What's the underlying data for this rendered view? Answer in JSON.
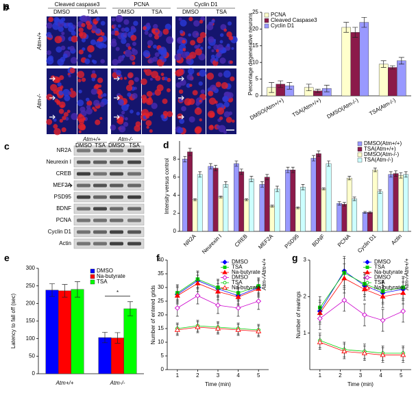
{
  "figure_a": {
    "letter": "a",
    "stains": [
      "Cleaved caspase3",
      "PCNA",
      "Cyclin D1"
    ],
    "treatments": [
      "DMSO",
      "TSA"
    ],
    "genotypes": [
      "Atm+/+",
      "Atm-/-"
    ]
  },
  "figure_c": {
    "letter": "c",
    "genotypes": [
      "Atm+/+",
      "Atm-/-"
    ],
    "treatments": [
      "DMSO",
      "TSA"
    ],
    "proteins": [
      "NR2A",
      "Neurexin I",
      "CREB",
      "MEF2A",
      "PSD95",
      "BDNF",
      "PCNA",
      "Cyclin D1",
      "Actin"
    ]
  },
  "chart_data": [
    {
      "type": "bar",
      "letter": "b",
      "ylabel": "Percentage degenerative neurons",
      "categories": [
        "DMSO(Atm+/+)",
        "TSA(Atm+/+)",
        "DMSO(Atm-/-)",
        "TSA(Atm-/-)"
      ],
      "series": [
        {
          "name": "PCNA",
          "color": "#ffffcc",
          "values": [
            2.5,
            2.5,
            20.5,
            9.5
          ],
          "errors": [
            1.5,
            1,
            1.5,
            1
          ]
        },
        {
          "name": "Cleaved Caspase3",
          "color": "#8b1a4a",
          "values": [
            3.5,
            1.5,
            19,
            8.5
          ],
          "errors": [
            1,
            0.5,
            1.5,
            0.5
          ]
        },
        {
          "name": "Cyclin D1",
          "color": "#9999ff",
          "values": [
            3,
            2.2,
            22,
            10.5
          ],
          "errors": [
            1,
            1,
            1.5,
            1
          ]
        }
      ],
      "ylim": [
        0,
        25
      ],
      "yticks": [
        0,
        5,
        10,
        15,
        20,
        25
      ],
      "legend": "upper left"
    },
    {
      "type": "bar",
      "letter": "d",
      "ylabel": "Intensity versus control",
      "categories": [
        "NR2A",
        "Neurexin I",
        "CREB",
        "MEF2A",
        "PSD95",
        "BDNF",
        "PCNA",
        "Cyclin D1",
        "Actin"
      ],
      "series": [
        {
          "name": "DMSO(Atm+/+)",
          "color": "#9999ff",
          "values": [
            8.0,
            7.2,
            7.5,
            5.2,
            6.8,
            8.1,
            3.1,
            2.1,
            6.3
          ],
          "errors": [
            0.3,
            0.3,
            0.3,
            0.3,
            0.3,
            0.3,
            0.2,
            0.1,
            0.3
          ]
        },
        {
          "name": "TSA(Atm+/+)",
          "color": "#8b1a4a",
          "values": [
            8.8,
            7.0,
            6.6,
            6.0,
            6.8,
            8.6,
            3.0,
            2.1,
            6.4
          ],
          "errors": [
            0.4,
            0.3,
            0.3,
            0.3,
            0.3,
            0.3,
            0.2,
            0.1,
            0.3
          ]
        },
        {
          "name": "DMSO(Atm-/-)",
          "color": "#ffffcc",
          "values": [
            3.5,
            3.8,
            3.5,
            2.8,
            2.6,
            4.7,
            5.9,
            6.8,
            6.2
          ],
          "errors": [
            0.1,
            0.1,
            0.1,
            0.1,
            0.1,
            0.1,
            0.2,
            0.2,
            0.3
          ]
        },
        {
          "name": "TSA(Atm-/-)",
          "color": "#ccffff",
          "values": [
            6.3,
            5.2,
            5.8,
            4.7,
            4.9,
            7.5,
            3.6,
            4.4,
            6.3
          ],
          "errors": [
            0.3,
            0.3,
            0.3,
            0.3,
            0.3,
            0.3,
            0.2,
            0.2,
            0.3
          ]
        }
      ],
      "ylim": [
        0,
        10
      ],
      "yticks": [
        0,
        2,
        4,
        6,
        8
      ],
      "legend": "upper right"
    },
    {
      "type": "bar",
      "letter": "e",
      "ylabel": "Latency to fall off (sec)",
      "categories": [
        "Atm+/+",
        "Atm-/-"
      ],
      "series": [
        {
          "name": "DMSO",
          "color": "#0000ff",
          "values": [
            238,
            103
          ],
          "errors": [
            18,
            15
          ]
        },
        {
          "name": "Na-butyrate",
          "color": "#ff0000",
          "values": [
            236,
            102
          ],
          "errors": [
            18,
            15
          ]
        },
        {
          "name": "TSA",
          "color": "#00ff00",
          "values": [
            240,
            185
          ],
          "errors": [
            22,
            20
          ]
        }
      ],
      "ylim": [
        0,
        300
      ],
      "yticks": [
        0,
        50,
        100,
        150,
        200,
        250,
        300
      ],
      "legend": "upper right",
      "annotation": "*"
    },
    {
      "type": "line",
      "letter": "f",
      "xlabel": "Time (min)",
      "ylabel": "Number of entered grids",
      "x": [
        1,
        2,
        3,
        4,
        5
      ],
      "xlim": [
        0.5,
        5.5
      ],
      "xticks": [
        1,
        2,
        3,
        4,
        5
      ],
      "ylim": [
        0,
        40
      ],
      "yticks": [
        0,
        5,
        10,
        15,
        20,
        25,
        30,
        35,
        40
      ],
      "legend": "upper right",
      "legend_groups": [
        "Atm+/+",
        "Atm-/-"
      ],
      "series": [
        {
          "name": "DMSO",
          "color": "#0000ff",
          "marker": "diamond",
          "filled": true,
          "values": [
            27.5,
            32.5,
            29.5,
            27,
            30
          ],
          "errors": [
            3,
            3,
            3,
            3,
            3
          ]
        },
        {
          "name": "TSA",
          "color": "#00cc00",
          "marker": "square",
          "filled": true,
          "values": [
            28,
            33,
            30,
            28,
            30.5
          ],
          "errors": [
            3,
            3,
            3,
            3,
            3
          ]
        },
        {
          "name": "Na-butyrate",
          "color": "#ff0000",
          "marker": "triangle",
          "filled": true,
          "values": [
            27,
            31.5,
            28.5,
            26.5,
            29.5
          ],
          "errors": [
            3,
            3,
            3,
            3,
            3
          ]
        },
        {
          "name": "DMSO",
          "color": "#cc00cc",
          "marker": "diamond",
          "filled": false,
          "values": [
            22.5,
            27,
            23.5,
            22.5,
            25
          ],
          "errors": [
            3,
            3,
            3,
            3,
            3
          ]
        },
        {
          "name": "TSA",
          "color": "#00cc00",
          "marker": "circle",
          "filled": false,
          "values": [
            15,
            16,
            15.5,
            15,
            14.5
          ],
          "errors": [
            2,
            2,
            2,
            2,
            2
          ]
        },
        {
          "name": "Na-butyrate",
          "color": "#ff0000",
          "marker": "triangle",
          "filled": false,
          "values": [
            14.5,
            15.5,
            15,
            14.5,
            14
          ],
          "errors": [
            2,
            2,
            2,
            2,
            2
          ]
        }
      ]
    },
    {
      "type": "line",
      "letter": "g",
      "xlabel": "Time (min)",
      "ylabel": "Number of rearings",
      "x": [
        1,
        2.2,
        3.2,
        4.1,
        5.1
      ],
      "xlim": [
        0.5,
        5.5
      ],
      "xticks": [
        1,
        2,
        3,
        4,
        5
      ],
      "ylim": [
        0,
        3
      ],
      "yticks": [
        1,
        2,
        3
      ],
      "legend": "upper right",
      "legend_groups": [
        "Atm+/+",
        "Atm-/-"
      ],
      "series": [
        {
          "name": "DMSO",
          "color": "#0000ff",
          "marker": "diamond",
          "filled": true,
          "values": [
            1.6,
            2.7,
            2.3,
            2.1,
            2.2
          ],
          "errors": [
            0.3,
            0.4,
            0.3,
            0.3,
            0.3
          ]
        },
        {
          "name": "TSA",
          "color": "#00cc00",
          "marker": "square",
          "filled": true,
          "values": [
            1.7,
            2.65,
            2.35,
            2.15,
            2.25
          ],
          "errors": [
            0.3,
            0.4,
            0.3,
            0.3,
            0.3
          ]
        },
        {
          "name": "Na-butyrate",
          "color": "#ff0000",
          "marker": "triangle",
          "filled": true,
          "values": [
            1.55,
            2.5,
            2.2,
            2.0,
            2.1
          ],
          "errors": [
            0.3,
            0.4,
            0.3,
            0.3,
            0.3
          ]
        },
        {
          "name": "DMSO",
          "color": "#cc00cc",
          "marker": "diamond",
          "filled": false,
          "values": [
            1.4,
            1.9,
            1.5,
            1.35,
            1.6
          ],
          "errors": [
            0.3,
            0.3,
            0.3,
            0.3,
            0.3
          ]
        },
        {
          "name": "TSA",
          "color": "#00cc00",
          "marker": "circle",
          "filled": false,
          "values": [
            0.8,
            0.55,
            0.5,
            0.45,
            0.45
          ],
          "errors": [
            0.2,
            0.2,
            0.2,
            0.2,
            0.2
          ]
        },
        {
          "name": "Na-butyrate",
          "color": "#ff0000",
          "marker": "triangle",
          "filled": false,
          "values": [
            0.75,
            0.5,
            0.45,
            0.4,
            0.4
          ],
          "errors": [
            0.2,
            0.2,
            0.2,
            0.2,
            0.2
          ]
        }
      ]
    }
  ]
}
